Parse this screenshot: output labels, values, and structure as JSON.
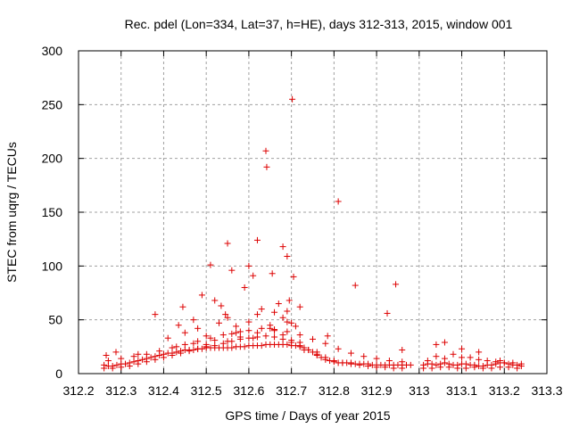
{
  "chart_data": {
    "type": "scatter",
    "title": "Rec. pdel (Lon=334, Lat=37, h=HE), days 312-313, 2015, window 001",
    "xlabel": "GPS time / Days of year 2015",
    "ylabel": "STEC from uqrg / TECUs",
    "xlim": [
      312.2,
      313.3
    ],
    "ylim": [
      0,
      300
    ],
    "xticks": [
      "312.2",
      "312.3",
      "312.4",
      "312.5",
      "312.6",
      "312.7",
      "312.8",
      "312.9",
      "313",
      "313.1",
      "313.2",
      "313.3"
    ],
    "yticks": [
      "0",
      "50",
      "100",
      "150",
      "200",
      "250",
      "300"
    ],
    "grid": true,
    "marker": "+",
    "colors": {
      "series": "#dd0000",
      "grid": "#a0a0a0",
      "axis": "#000000"
    },
    "series": [
      {
        "x": [
          312.265,
          312.288,
          312.34,
          312.38,
          312.41,
          312.435,
          312.445,
          312.47,
          312.49,
          312.51,
          312.52,
          312.535,
          312.545,
          312.55,
          312.56,
          312.59,
          312.6,
          312.61,
          312.62,
          312.64,
          312.642,
          312.655,
          312.68,
          312.69,
          312.695,
          312.705,
          312.702,
          312.72,
          312.785,
          312.81,
          312.85,
          312.925,
          312.945,
          312.96,
          313.04,
          313.06,
          313.1,
          313.14,
          313.19,
          312.26,
          312.27,
          312.28,
          312.29,
          312.3,
          312.31,
          312.32,
          312.33,
          312.34,
          312.35,
          312.36,
          312.37,
          312.38,
          312.39,
          312.4,
          312.41,
          312.42,
          312.43,
          312.44,
          312.45,
          312.46,
          312.47,
          312.48,
          312.49,
          312.5,
          312.51,
          312.52,
          312.53,
          312.54,
          312.55,
          312.56,
          312.57,
          312.58,
          312.59,
          312.6,
          312.61,
          312.62,
          312.63,
          312.64,
          312.65,
          312.66,
          312.67,
          312.68,
          312.69,
          312.7,
          312.71,
          312.72,
          312.73,
          312.74,
          312.75,
          312.76,
          312.77,
          312.78,
          312.79,
          312.8,
          312.81,
          312.82,
          312.83,
          312.84,
          312.85,
          312.86,
          312.87,
          312.88,
          312.89,
          312.9,
          312.91,
          312.92,
          312.93,
          312.94,
          312.95,
          312.96,
          312.97,
          312.98,
          312.26,
          312.28,
          312.3,
          312.32,
          312.34,
          312.36,
          312.38,
          312.4,
          312.42,
          312.44,
          312.46,
          312.48,
          312.5,
          312.52,
          312.54,
          312.56,
          312.58,
          312.6,
          312.62,
          312.64,
          312.66,
          312.68,
          312.7,
          312.72,
          312.74,
          312.76,
          312.78,
          312.8,
          312.82,
          312.84,
          312.86,
          312.88,
          312.9,
          312.92,
          312.94,
          312.96,
          312.27,
          312.3,
          312.33,
          312.36,
          312.39,
          312.42,
          312.45,
          312.48,
          312.51,
          312.54,
          312.57,
          312.6,
          312.63,
          312.66,
          312.69,
          312.72,
          312.75,
          312.78,
          312.81,
          312.84,
          312.87,
          312.9,
          312.93,
          312.96,
          312.45,
          312.48,
          312.5,
          312.53,
          312.55,
          312.57,
          312.58,
          312.6,
          312.62,
          312.63,
          312.65,
          312.66,
          312.67,
          312.68,
          312.69,
          312.7,
          312.71,
          312.55,
          312.58,
          312.62,
          312.66,
          312.68,
          312.7,
          312.72,
          312.5,
          312.56,
          312.61,
          312.65,
          312.69,
          312.73,
          312.76,
          312.43,
          312.47,
          312.52,
          313.01,
          313.02,
          313.03,
          313.04,
          313.05,
          313.06,
          313.07,
          313.08,
          313.09,
          313.1,
          313.11,
          313.12,
          313.13,
          313.14,
          313.15,
          313.16,
          313.17,
          313.18,
          313.19,
          313.2,
          313.21,
          313.22,
          313.23,
          313.24,
          313.01,
          313.03,
          313.05,
          313.07,
          313.09,
          313.11,
          313.13,
          313.15,
          313.17,
          313.19,
          313.21,
          313.23,
          313.02,
          313.06,
          313.1,
          313.14,
          313.18,
          313.22,
          313.04,
          313.08,
          313.12,
          313.16,
          313.2,
          313.24
        ],
        "y": [
          17,
          20,
          18,
          55,
          33,
          45,
          62,
          50,
          73,
          101,
          68,
          63,
          55,
          121,
          96,
          80,
          100,
          91,
          124,
          207,
          192,
          93,
          118,
          109,
          68,
          90,
          255,
          62,
          35,
          160,
          82,
          56,
          83,
          22,
          27,
          29,
          23,
          20,
          12,
          8,
          7,
          7,
          8,
          9,
          9,
          10,
          11,
          12,
          13,
          14,
          15,
          16,
          17,
          18,
          19,
          19,
          20,
          21,
          22,
          22,
          22,
          23,
          23,
          24,
          24,
          24,
          24,
          24,
          24,
          24,
          25,
          25,
          25,
          26,
          26,
          26,
          26,
          27,
          27,
          27,
          27,
          27,
          27,
          26,
          26,
          25,
          24,
          22,
          20,
          17,
          15,
          13,
          12,
          11,
          10,
          10,
          10,
          10,
          9,
          9,
          9,
          9,
          8,
          8,
          8,
          8,
          8,
          8,
          8,
          8,
          8,
          8,
          5,
          5,
          6,
          7,
          9,
          11,
          13,
          15,
          17,
          19,
          21,
          23,
          25,
          26,
          28,
          30,
          32,
          33,
          34,
          35,
          34,
          32,
          29,
          26,
          22,
          18,
          15,
          12,
          10,
          9,
          8,
          7,
          6,
          6,
          5,
          5,
          12,
          14,
          16,
          18,
          21,
          24,
          27,
          30,
          33,
          36,
          38,
          40,
          42,
          41,
          39,
          36,
          32,
          28,
          23,
          19,
          16,
          14,
          12,
          11,
          38,
          42,
          35,
          47,
          52,
          44,
          39,
          48,
          55,
          60,
          45,
          57,
          65,
          52,
          58,
          47,
          44,
          30,
          34,
          38,
          40,
          36,
          31,
          29,
          27,
          37,
          33,
          42,
          48,
          22,
          20,
          25,
          28,
          31,
          8,
          9,
          9,
          8,
          9,
          10,
          9,
          8,
          8,
          9,
          9,
          8,
          8,
          7,
          7,
          8,
          8,
          9,
          10,
          10,
          9,
          8,
          8,
          7,
          5,
          5,
          6,
          6,
          5,
          5,
          6,
          5,
          5,
          6,
          6,
          5,
          12,
          14,
          15,
          13,
          11,
          10,
          16,
          18,
          15,
          12,
          10,
          9
        ]
      }
    ]
  }
}
